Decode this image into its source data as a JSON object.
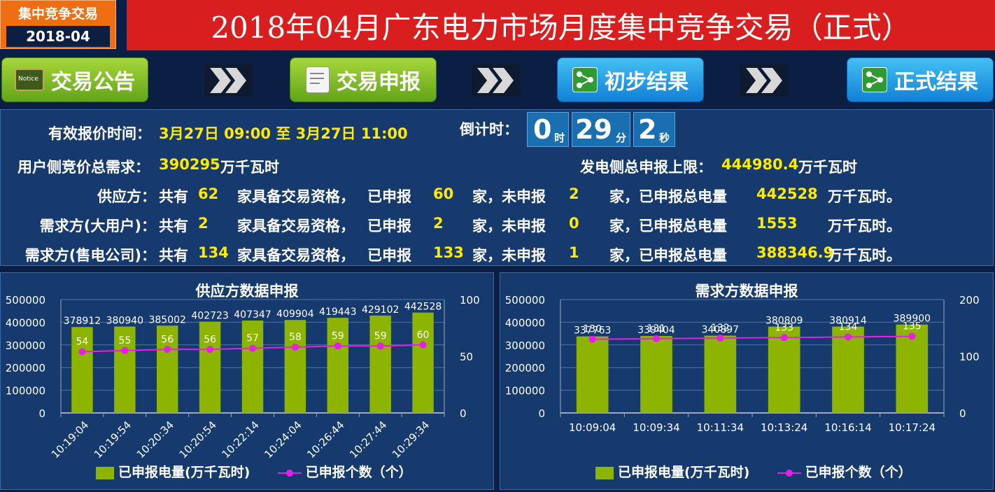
{
  "header": {
    "badge_title": "集中竞争交易",
    "badge_date": "2018-04",
    "title": "2018年04月广东电力市场月度集中竞争交易（正式）"
  },
  "steps": [
    {
      "label": "交易公告",
      "icon": "notice-icon",
      "color": "#7cc121"
    },
    {
      "label": "交易申报",
      "icon": "edit-document-icon",
      "color": "#7cc121"
    },
    {
      "label": "初步结果",
      "icon": "share-icon",
      "color": "#2aa3ea"
    },
    {
      "label": "正式结果",
      "icon": "share-icon",
      "color": "#2aa3ea"
    }
  ],
  "info": {
    "quote_time_label": "有效报价时间：",
    "quote_time_value": "3月27日 09:00 至 3月27日 11:00",
    "countdown_label": "倒计时：",
    "countdown": {
      "hours": "0",
      "hours_unit": "时",
      "minutes": "29",
      "minutes_unit": "分",
      "seconds": "2",
      "seconds_unit": "秒"
    },
    "user_demand_label": "用户侧竞价总需求：",
    "user_demand_value": "390295",
    "user_demand_unit": "万千瓦时",
    "gen_limit_label": "发电侧总申报上限：",
    "gen_limit_value": "444980.4",
    "gen_limit_unit": "万千瓦时",
    "text_total": "共有",
    "text_qualified": "家具备交易资格，",
    "text_declared": "已申报",
    "text_home_undeclared": "家，未申报",
    "text_home_total_energy": "家，已申报总电量",
    "text_unit_end": "万千瓦时。",
    "rows": [
      {
        "label": "供应方：",
        "total": "62",
        "declared": "60",
        "undeclared": "2",
        "energy": "442528"
      },
      {
        "label": "需求方(大用户)：",
        "total": "2",
        "declared": "2",
        "undeclared": "0",
        "energy": "1553"
      },
      {
        "label": "需求方(售电公司)：",
        "total": "134",
        "declared": "133",
        "undeclared": "1",
        "energy": "388346.9"
      }
    ]
  },
  "legend": {
    "bar": "已申报电量(万千瓦时)",
    "line": "已申报个数（个）"
  },
  "colors": {
    "bar": "#8cb400",
    "line": "#e81ee8"
  },
  "chart_data": [
    {
      "type": "bar",
      "title": "供应方数据申报",
      "categories": [
        "10:19:04",
        "10:19:54",
        "10:20:34",
        "10:20:54",
        "10:22:14",
        "10:24:04",
        "10:26:44",
        "10:27:44",
        "10:29:34"
      ],
      "series": [
        {
          "name": "已申报电量(万千瓦时)",
          "type": "bar",
          "values": [
            378912,
            380940,
            385002,
            402723,
            407347,
            409904,
            419443,
            429102,
            442528
          ]
        },
        {
          "name": "已申报个数（个）",
          "type": "line",
          "axis": "right",
          "values": [
            54,
            55,
            56,
            56,
            57,
            58,
            59,
            59,
            60
          ]
        }
      ],
      "ylim": [
        0,
        500000
      ],
      "yticks": [
        "0",
        "100000",
        "200000",
        "300000",
        "400000",
        "500000"
      ],
      "y2lim": [
        0,
        100
      ],
      "y2ticks": [
        "0",
        "50",
        "100"
      ],
      "xlabel_rotated": true,
      "legend": "bottom"
    },
    {
      "type": "bar",
      "title": "需求方数据申报",
      "categories": [
        "10:09:04",
        "10:09:34",
        "10:11:34",
        "10:13:24",
        "10:16:14",
        "10:17:24"
      ],
      "series": [
        {
          "name": "已申报电量(万千瓦时)",
          "type": "bar",
          "values": [
            337763,
            339404,
            340897,
            380809,
            380914,
            389900
          ]
        },
        {
          "name": "已申报个数（个）",
          "type": "line",
          "axis": "right",
          "values": [
            130,
            131,
            132,
            133,
            134,
            135
          ]
        }
      ],
      "ylim": [
        0,
        500000
      ],
      "yticks": [
        "0",
        "100000",
        "200000",
        "300000",
        "400000",
        "500000"
      ],
      "y2lim": [
        0,
        200
      ],
      "y2ticks": [
        "0",
        "100",
        "200"
      ],
      "xlabel_rotated": false,
      "legend": "bottom"
    }
  ]
}
